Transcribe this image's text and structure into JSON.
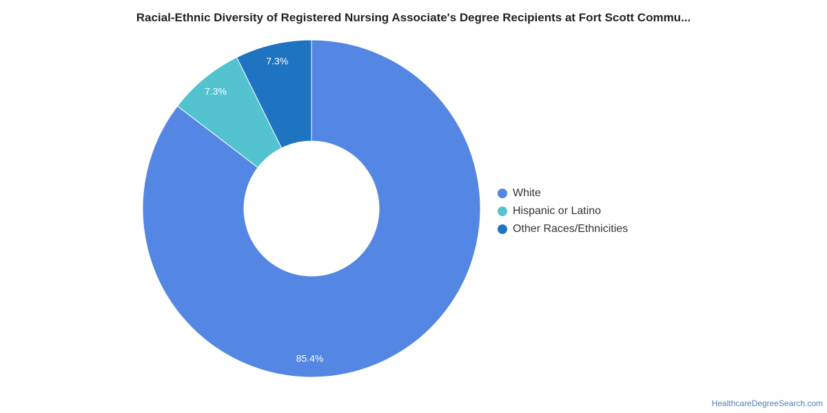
{
  "chart_data": {
    "type": "pie",
    "title": "Racial-Ethnic Diversity of Registered Nursing Associate's Degree Recipients at Fort Scott Commu...",
    "donut": true,
    "legend_position": "right",
    "categories": [
      "White",
      "Hispanic or Latino",
      "Other Races/Ethnicities"
    ],
    "values": [
      85.4,
      7.3,
      7.3
    ],
    "labels": [
      "85.4%",
      "7.3%",
      "7.3%"
    ],
    "colors": [
      "#5486e3",
      "#52c3cf",
      "#1f74c1"
    ]
  },
  "source": "HealthcareDegreeSearch.com"
}
